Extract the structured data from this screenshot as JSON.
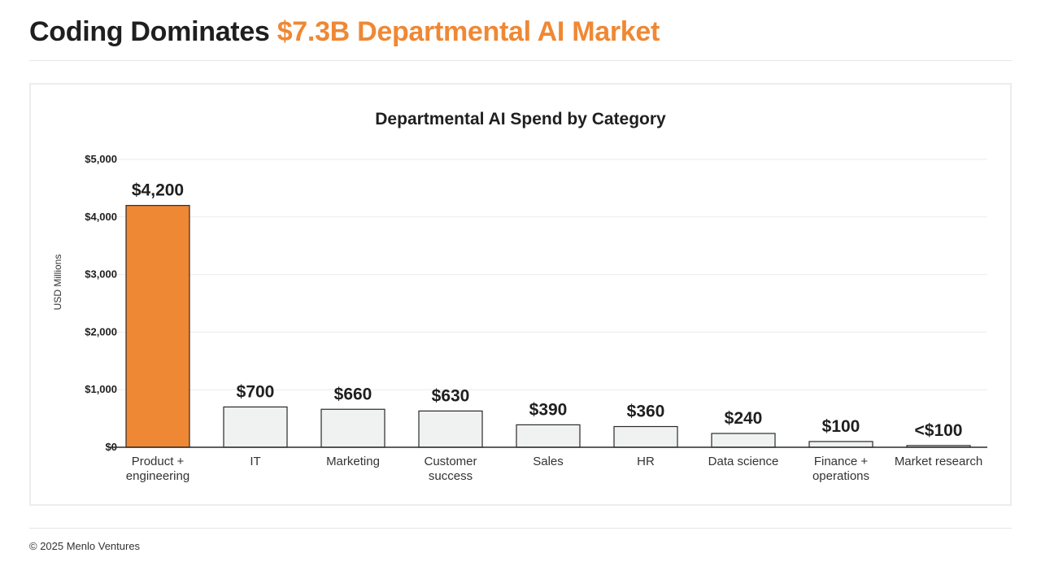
{
  "header": {
    "title_prefix": "Coding Dominates",
    "title_accent": "$7.3B Departmental AI Market"
  },
  "footer": {
    "copyright": "© 2025 Menlo Ventures"
  },
  "colors": {
    "accent": "#ef8834",
    "bar_default": "#f0f1f1",
    "bar_stroke": "#2a2a2a",
    "grid": "#ececec"
  },
  "chart_data": {
    "type": "bar",
    "title": "Departmental AI Spend by Category",
    "xlabel": "",
    "ylabel": "USD Millions",
    "ylim": [
      0,
      5000
    ],
    "yticks": [
      0,
      1000,
      2000,
      3000,
      4000,
      5000
    ],
    "ytick_labels": [
      "$0",
      "$1,000",
      "$2,000",
      "$3,000",
      "$4,000",
      "$5,000"
    ],
    "categories": [
      [
        "Product +",
        "engineering"
      ],
      [
        "IT"
      ],
      [
        "Marketing"
      ],
      [
        "Customer",
        "success"
      ],
      [
        "Sales"
      ],
      [
        "HR"
      ],
      [
        "Data science"
      ],
      [
        "Finance +",
        "operations"
      ],
      [
        "Market research"
      ]
    ],
    "values": [
      4200,
      700,
      660,
      630,
      390,
      360,
      240,
      100,
      30
    ],
    "data_labels": [
      "$4,200",
      "$700",
      "$660",
      "$630",
      "$390",
      "$360",
      "$240",
      "$100",
      "<$100"
    ],
    "highlight_index": 0,
    "grid": true,
    "legend": "none"
  }
}
